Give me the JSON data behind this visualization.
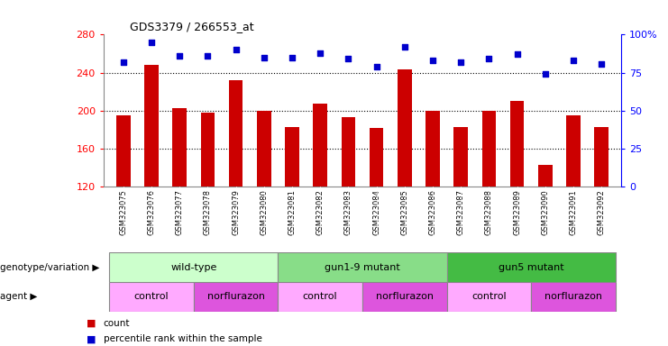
{
  "title": "GDS3379 / 266553_at",
  "samples": [
    "GSM323075",
    "GSM323076",
    "GSM323077",
    "GSM323078",
    "GSM323079",
    "GSM323080",
    "GSM323081",
    "GSM323082",
    "GSM323083",
    "GSM323084",
    "GSM323085",
    "GSM323086",
    "GSM323087",
    "GSM323088",
    "GSM323089",
    "GSM323090",
    "GSM323091",
    "GSM323092"
  ],
  "counts": [
    195,
    248,
    203,
    198,
    232,
    200,
    183,
    207,
    193,
    182,
    243,
    200,
    183,
    200,
    210,
    143,
    195,
    183
  ],
  "percentile_ranks": [
    82,
    95,
    86,
    86,
    90,
    85,
    85,
    88,
    84,
    79,
    92,
    83,
    82,
    84,
    87,
    74,
    83,
    81
  ],
  "ymin": 120,
  "ymax": 280,
  "yticks": [
    120,
    160,
    200,
    240,
    280
  ],
  "right_yticks": [
    0,
    25,
    50,
    75,
    100
  ],
  "right_ylabels": [
    "0",
    "25",
    "50",
    "75",
    "100%"
  ],
  "bar_color": "#cc0000",
  "dot_color": "#0000cc",
  "bar_width": 0.5,
  "groups": [
    {
      "label": "wild-type",
      "start": 0,
      "end": 5,
      "color": "#ccffcc"
    },
    {
      "label": "gun1-9 mutant",
      "start": 6,
      "end": 11,
      "color": "#88dd88"
    },
    {
      "label": "gun5 mutant",
      "start": 12,
      "end": 17,
      "color": "#44bb44"
    }
  ],
  "agents": [
    {
      "label": "control",
      "start": 0,
      "end": 2,
      "color": "#ffaaff"
    },
    {
      "label": "norflurazon",
      "start": 3,
      "end": 5,
      "color": "#dd55dd"
    },
    {
      "label": "control",
      "start": 6,
      "end": 8,
      "color": "#ffaaff"
    },
    {
      "label": "norflurazon",
      "start": 9,
      "end": 11,
      "color": "#dd55dd"
    },
    {
      "label": "control",
      "start": 12,
      "end": 14,
      "color": "#ffaaff"
    },
    {
      "label": "norflurazon",
      "start": 15,
      "end": 17,
      "color": "#dd55dd"
    }
  ],
  "legend_count_color": "#cc0000",
  "legend_dot_color": "#0000cc",
  "genotype_label": "genotype/variation",
  "agent_label": "agent",
  "xtick_bg_color": "#d0d0d0",
  "grid_color": "black"
}
